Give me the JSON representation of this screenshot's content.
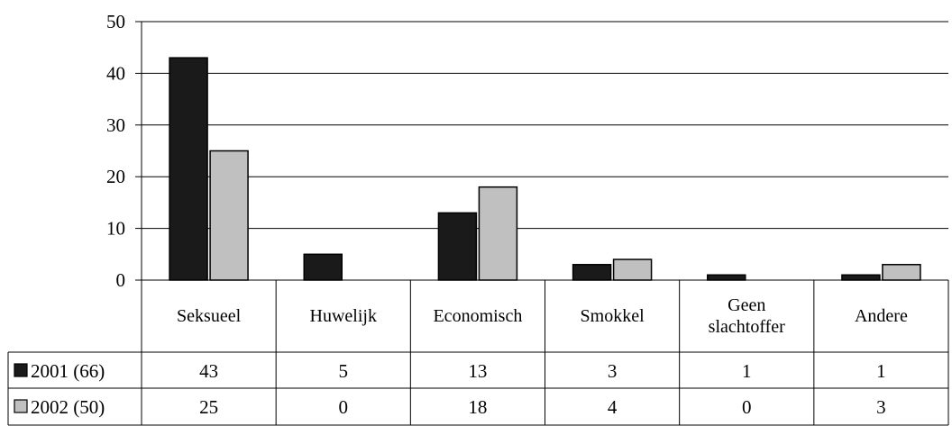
{
  "chart_data": {
    "type": "bar",
    "categories": [
      [
        "Seksueel"
      ],
      [
        "Huwelijk"
      ],
      [
        "Economisch"
      ],
      [
        "Smokkel"
      ],
      [
        "Geen",
        "slachtoffer"
      ],
      [
        "Andere"
      ]
    ],
    "series": [
      {
        "name": "2001 (66)",
        "values": [
          43,
          5,
          13,
          3,
          1,
          1
        ],
        "color": "#1a1a1a"
      },
      {
        "name": "2002 (50)",
        "values": [
          25,
          0,
          18,
          4,
          0,
          3
        ],
        "color": "#c0c0c0"
      }
    ],
    "ylim": [
      0,
      50
    ],
    "yticks": [
      0,
      10,
      20,
      30,
      40,
      50
    ],
    "grid": true,
    "legend": "data-table"
  }
}
